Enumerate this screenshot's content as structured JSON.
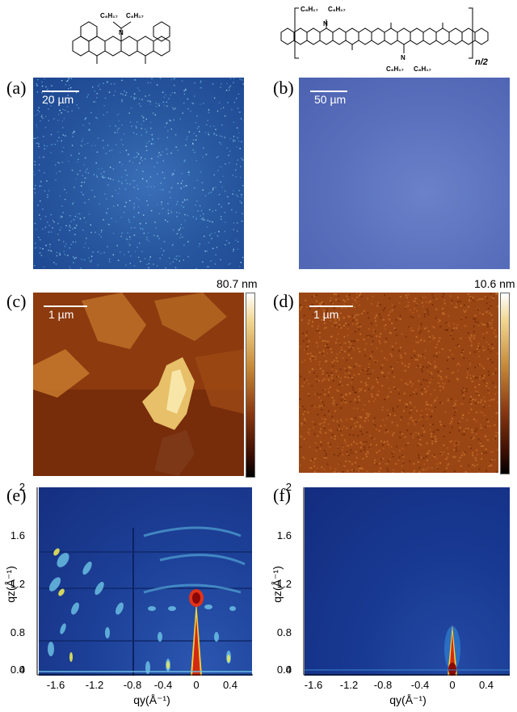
{
  "structures": {
    "left": {
      "alkyl_left": "C₈H₁₇",
      "alkyl_right": "C₈H₁₇",
      "atom": "N"
    },
    "right": {
      "alkyl_top_left": "C₈H₁₇",
      "alkyl_top_right": "C₈H₁₇",
      "alkyl_bottom_left": "C₈H₁₇",
      "alkyl_bottom_right": "C₈H₁₇",
      "atom_top": "N",
      "atom_bottom": "N",
      "repeat": "n/2"
    }
  },
  "panels": {
    "a": {
      "label": "(a)",
      "scale": "20 µm"
    },
    "b": {
      "label": "(b)",
      "scale": "50 µm"
    },
    "c": {
      "label": "(c)",
      "scale": "1 µm",
      "colorbar_max": "80.7 nm"
    },
    "d": {
      "label": "(d)",
      "scale": "1 µm",
      "colorbar_max": "10.6 nm"
    },
    "e": {
      "label": "(e)"
    },
    "f": {
      "label": "(f)"
    }
  },
  "giwaxs_axes": {
    "y_ticks": [
      "2",
      "1.6",
      "1.2",
      "0.8",
      "0.4",
      "0"
    ],
    "x_ticks": [
      "-1.6",
      "-1.2",
      "-0.8",
      "-0.4",
      "0",
      "0.4"
    ],
    "y_title": "qz(Å⁻¹)",
    "x_title": "qy(Å⁻¹)"
  },
  "colors": {
    "optical_a": "#1f4f9a",
    "optical_b": "#5a72bf",
    "afm_dark": "#5a1a05",
    "afm_mid": "#a84a12",
    "afm_light": "#f5e2a0",
    "giwaxs_bg": "#1a3a8a"
  }
}
